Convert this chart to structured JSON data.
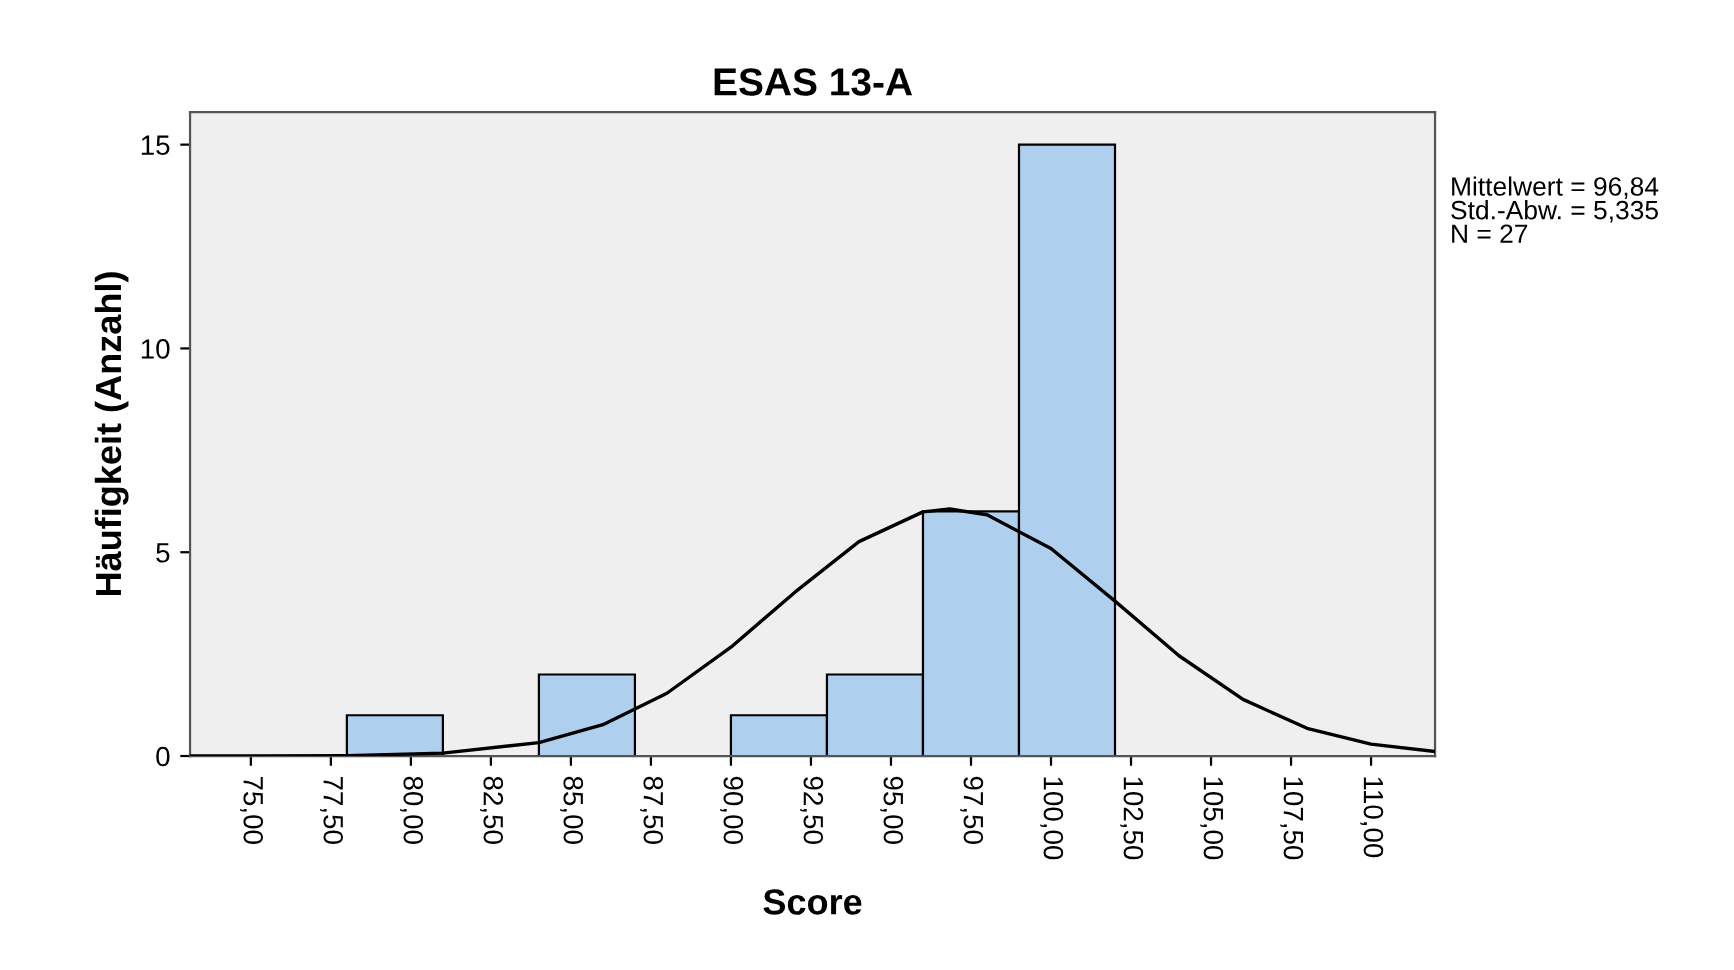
{
  "chart_data": {
    "type": "histogram",
    "title": "ESAS 13-A",
    "xlabel": "Score",
    "ylabel": "Häufigkeit (Anzahl)",
    "bins": [
      78,
      81,
      84,
      87,
      90,
      93,
      96,
      99,
      102
    ],
    "values": [
      1,
      0,
      2,
      0,
      1,
      2,
      6,
      15
    ],
    "color": "#aed0ee",
    "series": [
      {
        "type": "line",
        "color": "#000000",
        "x": [
          73.1,
          75,
          78,
          81,
          84,
          86,
          88,
          90,
          92,
          94,
          96,
          96.84,
          98,
          100,
          102,
          104,
          106,
          108,
          110,
          112
        ],
        "values": [
          0,
          0,
          0.01,
          0.07,
          0.33,
          0.77,
          1.54,
          2.67,
          4.02,
          5.26,
          5.99,
          6.06,
          5.92,
          5.09,
          3.8,
          2.46,
          1.39,
          0.68,
          0.29,
          0.11
        ]
      }
    ],
    "xlim": [
      73.1,
      112
    ],
    "ylim": [
      0,
      15.8
    ],
    "xticks": [
      {
        "value": 75,
        "label": "75,00"
      },
      {
        "value": 77.5,
        "label": "77,50"
      },
      {
        "value": 80,
        "label": "80,00"
      },
      {
        "value": 82.5,
        "label": "82,50"
      },
      {
        "value": 85,
        "label": "85,00"
      },
      {
        "value": 87.5,
        "label": "87,50"
      },
      {
        "value": 90,
        "label": "90,00"
      },
      {
        "value": 92.5,
        "label": "92,50"
      },
      {
        "value": 95,
        "label": "95,00"
      },
      {
        "value": 97.5,
        "label": "97,50"
      },
      {
        "value": 100,
        "label": "100,00"
      },
      {
        "value": 102.5,
        "label": "102,50"
      },
      {
        "value": 105,
        "label": "105,00"
      },
      {
        "value": 107.5,
        "label": "107,50"
      },
      {
        "value": 110,
        "label": "110,00"
      }
    ],
    "yticks": [
      0,
      5,
      10,
      15
    ],
    "grid": false,
    "annotations": [
      "Mittelwert = 96,84",
      "Std.-Abw. = 5,335",
      "N = 27"
    ]
  }
}
